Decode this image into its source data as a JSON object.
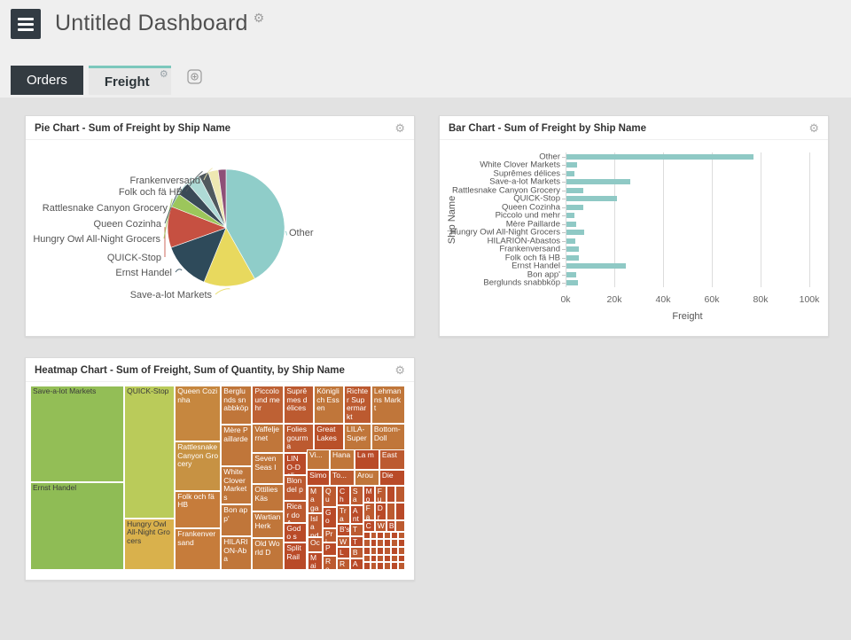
{
  "icons": {
    "gear": "⚙"
  },
  "app": {
    "title": "Untitled Dashboard"
  },
  "tabs": [
    {
      "label": "Orders",
      "active": false
    },
    {
      "label": "Freight",
      "active": true
    }
  ],
  "panels": {
    "pie": {
      "title": "Pie Chart - Sum of Freight by Ship Name"
    },
    "bar": {
      "title": "Bar Chart - Sum of Freight by Ship Name"
    },
    "heatmap": {
      "title": "Heatmap Chart - Sum of Freight, Sum of Quantity, by Ship Name"
    }
  },
  "chart_data": [
    {
      "type": "pie",
      "title": "Pie Chart - Sum of Freight by Ship Name",
      "value_unit": "freight, thousands",
      "center": {
        "x": 226,
        "y": 99
      },
      "radius": 66,
      "slices": [
        {
          "label": "Other",
          "value": 76.6,
          "color": "#8FCDC9",
          "anchor": "start",
          "label_x": 297,
          "label_y": 108,
          "line_angle": 97
        },
        {
          "label": "Save-a-lot Markets",
          "value": 26.2,
          "color": "#E8D95E",
          "anchor": "end",
          "label_x": 210,
          "label_y": 178
        },
        {
          "label": "Ernst Handel",
          "value": 24.5,
          "color": "#2E4A5A",
          "anchor": "end",
          "label_x": 165,
          "label_y": 153
        },
        {
          "label": "QUICK-Stop",
          "value": 20.8,
          "color": "#C65041",
          "anchor": "end",
          "label_x": 153,
          "label_y": 136
        },
        {
          "label": "Hungry Owl All-Night Grocers",
          "value": 7.2,
          "color": "#9CC65B",
          "anchor": "end",
          "label_x": 152,
          "label_y": 115
        },
        {
          "label": "Queen Cozinha",
          "value": 7.0,
          "color": "#3A4A57",
          "anchor": "end",
          "label_x": 153,
          "label_y": 98
        },
        {
          "label": "Rattlesnake Canyon Grocery",
          "value": 6.8,
          "color": "#AEDAD6",
          "anchor": "end",
          "label_x": 160,
          "label_y": 80
        },
        {
          "label": "Folk och fä HB",
          "value": 5.0,
          "color": "#50595E",
          "anchor": "end",
          "label_x": 177,
          "label_y": 62
        },
        {
          "label": "Frankenversand",
          "value": 5.0,
          "color": "#EEE8B2",
          "anchor": "end",
          "label_x": 197,
          "label_y": 49
        },
        {
          "label": "",
          "value": 4.0,
          "color": "#8E5077",
          "anchor": "none",
          "label_x": 0,
          "label_y": 0
        }
      ]
    },
    {
      "type": "bar",
      "orientation": "horizontal",
      "title": "Bar Chart - Sum of Freight by Ship Name",
      "xlabel": "Freight",
      "ylabel": "Ship Name",
      "value_unit": "thousands",
      "xlim": [
        0,
        100
      ],
      "bar_color": "#8FC9C5",
      "xticks": [
        {
          "label": "0k",
          "value": 0
        },
        {
          "label": "20k",
          "value": 20
        },
        {
          "label": "40k",
          "value": 40
        },
        {
          "label": "60k",
          "value": 60
        },
        {
          "label": "80k",
          "value": 80
        },
        {
          "label": "100k",
          "value": 100
        }
      ],
      "categories": [
        "Other",
        "White Clover Markets",
        "Suprêmes délices",
        "Save-a-lot Markets",
        "Rattlesnake Canyon Grocery",
        "QUICK-Stop",
        "Queen Cozinha",
        "Piccolo und mehr",
        "Mère Paillarde",
        "Hungry Owl All-Night Grocers",
        "HILARION-Abastos",
        "Frankenversand",
        "Folk och fä HB",
        "Ernst Handel",
        "Bon app'",
        "Berglunds snabbköp"
      ],
      "values": [
        76.6,
        4.2,
        3.1,
        26.2,
        6.8,
        20.8,
        7.0,
        3.1,
        4.1,
        7.2,
        3.6,
        5.0,
        5.0,
        24.5,
        4.0,
        4.7
      ]
    },
    {
      "type": "heatmap",
      "title": "Heatmap Chart - Sum of Freight, Sum of Quantity, by Ship Name",
      "measures": [
        "Sum of Freight",
        "Sum of Quantity"
      ],
      "group_by": "Ship Name",
      "cells": [
        {
          "label": "Save-a-lot Markets",
          "x": 0,
          "y": 0,
          "w": 25.1,
          "h": 52.4,
          "color": "#93BE56",
          "text": "#3A3A3A"
        },
        {
          "label": "Ernst Handel",
          "x": 0,
          "y": 52.4,
          "w": 25.1,
          "h": 47.6,
          "color": "#8FBC55",
          "text": "#3A3A3A"
        },
        {
          "label": "QUICK-Stop",
          "x": 25.1,
          "y": 0,
          "w": 13.5,
          "h": 72.1,
          "color": "#BACB5A",
          "text": "#3A3A3A"
        },
        {
          "label": "Hungry Owl All-Night Grocers",
          "x": 25.1,
          "y": 72.1,
          "w": 13.5,
          "h": 27.9,
          "color": "#D9B14C",
          "text": "#3A3A3A"
        },
        {
          "label": "Queen Cozinha",
          "x": 38.6,
          "y": 0,
          "w": 12.3,
          "h": 30.3,
          "color": "#C6873F",
          "text": "#FFFFFF"
        },
        {
          "label": "Rattlesnake Canyon Grocery",
          "x": 38.6,
          "y": 30.3,
          "w": 12.3,
          "h": 26.9,
          "color": "#C79243",
          "text": "#FFFFFF"
        },
        {
          "label": "Folk och fä HB",
          "x": 38.6,
          "y": 57.2,
          "w": 12.3,
          "h": 20.2,
          "color": "#C67C3B",
          "text": "#FFFFFF"
        },
        {
          "label": "Frankenversand",
          "x": 38.6,
          "y": 77.4,
          "w": 12.3,
          "h": 22.6,
          "color": "#C67C3B",
          "text": "#FFFFFF"
        },
        {
          "label": "Berglunds snabbköp",
          "x": 50.9,
          "y": 0,
          "w": 8.3,
          "h": 21.2,
          "color": "#C0763A",
          "text": "#FFFFFF"
        },
        {
          "label": "Mère Paillarde",
          "x": 50.9,
          "y": 21.2,
          "w": 8.3,
          "h": 22.6,
          "color": "#C0763A",
          "text": "#FFFFFF"
        },
        {
          "label": "White Clover Markets",
          "x": 50.9,
          "y": 43.8,
          "w": 8.3,
          "h": 20.7,
          "color": "#C0763A",
          "text": "#FFFFFF"
        },
        {
          "label": "Bon app'",
          "x": 50.9,
          "y": 64.5,
          "w": 8.3,
          "h": 17.3,
          "color": "#C0763A",
          "text": "#FFFFFF"
        },
        {
          "label": "HILARION-Aba",
          "x": 50.9,
          "y": 81.8,
          "w": 8.3,
          "h": 18.2,
          "color": "#C0763A",
          "text": "#FFFFFF"
        },
        {
          "label": "Piccolo und mehr",
          "x": 59.2,
          "y": 0,
          "w": 8.5,
          "h": 20.7,
          "color": "#BE6134",
          "text": "#FFFFFF"
        },
        {
          "label": "Vaffeljernet",
          "x": 59.2,
          "y": 20.7,
          "w": 8.5,
          "h": 15.9,
          "color": "#C0763A",
          "text": "#FFFFFF"
        },
        {
          "label": "Seven Seas I",
          "x": 59.2,
          "y": 36.6,
          "w": 8.5,
          "h": 16.8,
          "color": "#C0763A",
          "text": "#FFFFFF"
        },
        {
          "label": "Ottilies Käs",
          "x": 59.2,
          "y": 53.4,
          "w": 8.5,
          "h": 14.9,
          "color": "#C0763A",
          "text": "#FFFFFF"
        },
        {
          "label": "Wartian Herk",
          "x": 59.2,
          "y": 68.3,
          "w": 8.5,
          "h": 14.4,
          "color": "#C0763A",
          "text": "#FFFFFF"
        },
        {
          "label": "Old World D",
          "x": 59.2,
          "y": 82.7,
          "w": 8.5,
          "h": 17.3,
          "color": "#C0763A",
          "text": "#FFFFFF"
        },
        {
          "label": "Suprêmes délices",
          "x": 67.7,
          "y": 0,
          "w": 8.0,
          "h": 20.7,
          "color": "#BC5A30",
          "text": "#FFFFFF"
        },
        {
          "label": "Folies gourma",
          "x": 67.7,
          "y": 20.7,
          "w": 8.0,
          "h": 15.9,
          "color": "#BC5A30",
          "text": "#FFFFFF"
        },
        {
          "label": "Königlich Essen",
          "x": 75.7,
          "y": 0,
          "w": 8.0,
          "h": 20.7,
          "color": "#C0763A",
          "text": "#FFFFFF"
        },
        {
          "label": "Great Lakes",
          "x": 75.7,
          "y": 20.7,
          "w": 8.0,
          "h": 15.9,
          "color": "#B95029",
          "text": "#FFFFFF"
        },
        {
          "label": "Richter Supermarkt",
          "x": 83.7,
          "y": 0,
          "w": 7.3,
          "h": 20.7,
          "color": "#BC5A30",
          "text": "#FFFFFF"
        },
        {
          "label": "LILA-Super",
          "x": 83.7,
          "y": 20.7,
          "w": 7.3,
          "h": 15.9,
          "color": "#C0763A",
          "text": "#FFFFFF"
        },
        {
          "label": "Lehmanns Markt",
          "x": 91.0,
          "y": 0,
          "w": 9.0,
          "h": 20.7,
          "color": "#C0763A",
          "text": "#FFFFFF"
        },
        {
          "label": "Bottom-Doll",
          "x": 91.0,
          "y": 20.7,
          "w": 9.0,
          "h": 15.9,
          "color": "#C0763A",
          "text": "#FFFFFF"
        },
        {
          "label": "LINO-Deli",
          "x": 67.7,
          "y": 36.6,
          "w": 6.1,
          "h": 12.0,
          "color": "#B94A28",
          "text": "#FFFFFF"
        },
        {
          "label": "Blon del p",
          "x": 67.7,
          "y": 48.6,
          "w": 6.1,
          "h": 13.9,
          "color": "#BC5A30",
          "text": "#FFFFFF"
        },
        {
          "label": "Ricar do A",
          "x": 67.7,
          "y": 62.5,
          "w": 6.1,
          "h": 12.0,
          "color": "#BC5A30",
          "text": "#FFFFFF"
        },
        {
          "label": "Godo s Co",
          "x": 67.7,
          "y": 74.5,
          "w": 6.1,
          "h": 10.6,
          "color": "#B94A28",
          "text": "#FFFFFF"
        },
        {
          "label": "Split Rail",
          "x": 67.7,
          "y": 85.1,
          "w": 6.1,
          "h": 14.9,
          "color": "#B94A28",
          "text": "#FFFFFF"
        },
        {
          "label": "Vi...",
          "x": 73.8,
          "y": 34.6,
          "w": 6.1,
          "h": 11.0,
          "color": "#C0763A",
          "text": "#FFFFFF"
        },
        {
          "label": "Hana",
          "x": 79.9,
          "y": 34.6,
          "w": 6.6,
          "h": 11.0,
          "color": "#C0763A",
          "text": "#FFFFFF"
        },
        {
          "label": "La m",
          "x": 86.5,
          "y": 34.6,
          "w": 6.6,
          "h": 11.0,
          "color": "#B94A28",
          "text": "#FFFFFF"
        },
        {
          "label": "East",
          "x": 93.1,
          "y": 34.6,
          "w": 6.9,
          "h": 11.0,
          "color": "#BC5A30",
          "text": "#FFFFFF"
        },
        {
          "label": "Simo",
          "x": 73.8,
          "y": 45.6,
          "w": 6.1,
          "h": 8.6,
          "color": "#B94A28",
          "text": "#FFFFFF"
        },
        {
          "label": "To...",
          "x": 79.9,
          "y": 45.6,
          "w": 6.6,
          "h": 8.6,
          "color": "#BC5A30",
          "text": "#FFFFFF"
        },
        {
          "label": "Arou",
          "x": 86.5,
          "y": 45.6,
          "w": 6.6,
          "h": 8.6,
          "color": "#C0763A",
          "text": "#FFFFFF"
        },
        {
          "label": "Die",
          "x": 93.1,
          "y": 45.6,
          "w": 6.9,
          "h": 8.6,
          "color": "#B94A28",
          "text": "#FFFFFF"
        },
        {
          "label": "Ma gaz",
          "x": 74.0,
          "y": 54.2,
          "w": 4.0,
          "h": 14.9,
          "color": "#BC5A30",
          "text": "#FFFFFF"
        },
        {
          "label": "Isla nd",
          "x": 74.0,
          "y": 69.1,
          "w": 4.0,
          "h": 13.0,
          "color": "#BC5A30",
          "text": "#FFFFFF"
        },
        {
          "label": "Oc",
          "x": 74.0,
          "y": 82.1,
          "w": 4.0,
          "h": 8.2,
          "color": "#BC5A30",
          "text": "#FFFFFF"
        },
        {
          "label": "Mai",
          "x": 74.0,
          "y": 90.3,
          "w": 4.0,
          "h": 9.7,
          "color": "#B94A28",
          "text": "#FFFFFF"
        },
        {
          "label": "Qu",
          "x": 78.0,
          "y": 54.2,
          "w": 3.8,
          "h": 11.5,
          "color": "#BC5A30",
          "text": "#FFFFFF"
        },
        {
          "label": "Go",
          "x": 78.0,
          "y": 65.7,
          "w": 3.8,
          "h": 11.5,
          "color": "#B94A28",
          "text": "#FFFFFF"
        },
        {
          "label": "Pri",
          "x": 78.0,
          "y": 77.2,
          "w": 3.8,
          "h": 8.0,
          "color": "#BC5A30",
          "text": "#FFFFFF"
        },
        {
          "label": "Per",
          "x": 78.0,
          "y": 85.2,
          "w": 3.8,
          "h": 7.0,
          "color": "#B94A28",
          "text": "#FFFFFF"
        },
        {
          "label": "Re",
          "x": 78.0,
          "y": 92.2,
          "w": 3.8,
          "h": 7.8,
          "color": "#BC5A30",
          "text": "#FFFFFF"
        },
        {
          "label": "Ch",
          "x": 81.8,
          "y": 54.2,
          "w": 3.5,
          "h": 10.5,
          "color": "#B94A28",
          "text": "#FFFFFF"
        },
        {
          "label": "Tra",
          "x": 81.8,
          "y": 64.7,
          "w": 3.5,
          "h": 10.5,
          "color": "#BC5A30",
          "text": "#FFFFFF"
        },
        {
          "label": "B's",
          "x": 81.8,
          "y": 75.2,
          "w": 3.5,
          "h": 6.5,
          "color": "#B94A28",
          "text": "#FFFFFF"
        },
        {
          "label": "W",
          "x": 81.8,
          "y": 81.7,
          "w": 3.5,
          "h": 6.0,
          "color": "#BC5A30",
          "text": "#FFFFFF"
        },
        {
          "label": "Let",
          "x": 81.8,
          "y": 87.7,
          "w": 3.5,
          "h": 6.0,
          "color": "#B94A28",
          "text": "#FFFFFF"
        },
        {
          "label": "Ra",
          "x": 81.8,
          "y": 93.7,
          "w": 3.5,
          "h": 6.3,
          "color": "#BC5A30",
          "text": "#FFFFFF"
        },
        {
          "label": "Sa",
          "x": 85.3,
          "y": 54.2,
          "w": 3.5,
          "h": 10.5,
          "color": "#BC5A30",
          "text": "#FFFFFF"
        },
        {
          "label": "Ant",
          "x": 85.3,
          "y": 64.7,
          "w": 3.5,
          "h": 10.5,
          "color": "#B94A28",
          "text": "#FFFFFF"
        },
        {
          "label": "Th",
          "x": 85.3,
          "y": 75.2,
          "w": 3.5,
          "h": 6.5,
          "color": "#BC5A30",
          "text": "#FFFFFF"
        },
        {
          "label": "T",
          "x": 85.3,
          "y": 81.7,
          "w": 3.5,
          "h": 6.0,
          "color": "#B94A28",
          "text": "#FFFFFF"
        },
        {
          "label": "B",
          "x": 85.3,
          "y": 87.7,
          "w": 3.5,
          "h": 6.0,
          "color": "#BC5A30",
          "text": "#FFFFFF"
        },
        {
          "label": "A",
          "x": 85.3,
          "y": 93.7,
          "w": 3.5,
          "h": 6.3,
          "color": "#B94A28",
          "text": "#FFFFFF"
        },
        {
          "label": "Mo",
          "x": 88.8,
          "y": 54.2,
          "w": 3.1,
          "h": 9.5,
          "color": "#B94A28",
          "text": "#FFFFFF"
        },
        {
          "label": "Fa",
          "x": 88.8,
          "y": 63.7,
          "w": 3.1,
          "h": 9.5,
          "color": "#BC5A30",
          "text": "#FFFFFF"
        },
        {
          "label": "C",
          "x": 88.8,
          "y": 73.2,
          "w": 3.1,
          "h": 6.0,
          "color": "#B94A28",
          "text": "#FFFFFF"
        },
        {
          "label": "Fu",
          "x": 91.9,
          "y": 54.2,
          "w": 3.1,
          "h": 9.5,
          "color": "#BC5A30",
          "text": "#FFFFFF"
        },
        {
          "label": "Dr",
          "x": 91.9,
          "y": 63.7,
          "w": 3.1,
          "h": 9.5,
          "color": "#B94A28",
          "text": "#FFFFFF"
        },
        {
          "label": "W",
          "x": 91.9,
          "y": 73.2,
          "w": 3.1,
          "h": 6.0,
          "color": "#BC5A30",
          "text": "#FFFFFF"
        },
        {
          "label": "",
          "x": 95.0,
          "y": 54.2,
          "w": 2.5,
          "h": 9.5,
          "color": "#B94A28",
          "text": "#FFFFFF"
        },
        {
          "label": "",
          "x": 95.0,
          "y": 63.7,
          "w": 2.5,
          "h": 9.5,
          "color": "#BC5A30",
          "text": "#FFFFFF"
        },
        {
          "label": "B",
          "x": 95.0,
          "y": 73.2,
          "w": 2.5,
          "h": 6.0,
          "color": "#B94A28",
          "text": "#FFFFFF"
        },
        {
          "label": "",
          "x": 97.5,
          "y": 54.2,
          "w": 2.5,
          "h": 9.5,
          "color": "#BC5A30",
          "text": "#FFFFFF"
        },
        {
          "label": "",
          "x": 97.5,
          "y": 63.7,
          "w": 2.5,
          "h": 9.5,
          "color": "#B94A28",
          "text": "#FFFFFF"
        },
        {
          "label": "",
          "x": 97.5,
          "y": 73.2,
          "w": 2.5,
          "h": 6.0,
          "color": "#BC5A30",
          "text": "#FFFFFF"
        }
      ],
      "micro_grid": {
        "x": 88.8,
        "y": 79.2,
        "w": 11.2,
        "h": 20.8,
        "cols": 6,
        "rows": 5,
        "colors": [
          "#B94A28",
          "#BC5A30"
        ]
      }
    }
  ]
}
